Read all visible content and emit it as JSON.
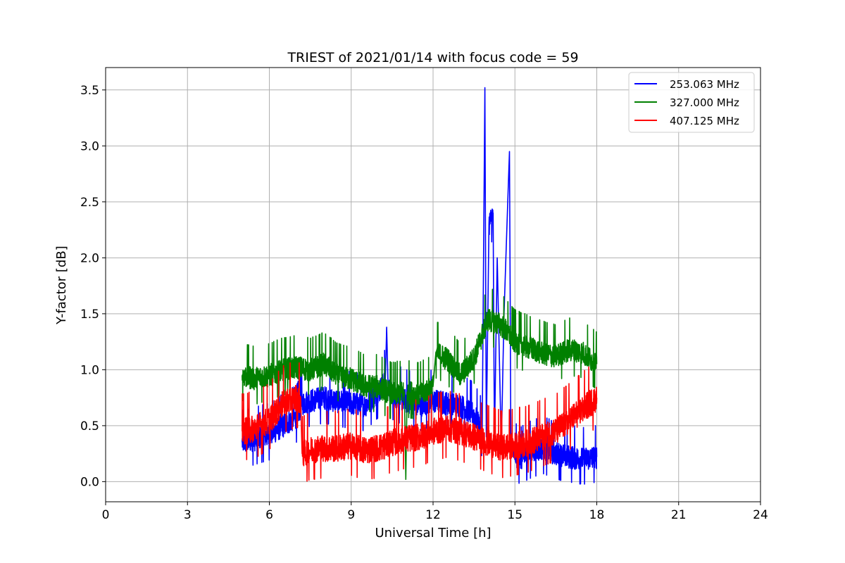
{
  "chart_data": {
    "type": "line",
    "title": "TRIEST of 2021/01/14 with focus code = 59",
    "xlabel": "Universal Time [h]",
    "ylabel": "Y-factor [dB]",
    "xlim": [
      0,
      24
    ],
    "ylim": [
      -0.18,
      3.7
    ],
    "xticks": [
      0,
      3,
      6,
      9,
      12,
      15,
      18,
      21,
      24
    ],
    "xtick_labels": [
      "0",
      "3",
      "6",
      "9",
      "12",
      "15",
      "18",
      "21",
      "24"
    ],
    "yticks": [
      0.0,
      0.5,
      1.0,
      1.5,
      2.0,
      2.5,
      3.0,
      3.5
    ],
    "ytick_labels": [
      "0.0",
      "0.5",
      "1.0",
      "1.5",
      "2.0",
      "2.5",
      "3.0",
      "3.5"
    ],
    "grid": true,
    "legend_position": "top-right",
    "series": [
      {
        "name": "253.063 MHz",
        "color": "#0000ff",
        "noise": 0.06,
        "x": [
          5.0,
          5.5,
          6.0,
          6.5,
          7.0,
          7.2,
          7.5,
          8.0,
          8.5,
          9.0,
          9.5,
          10.0,
          10.25,
          10.3,
          10.35,
          10.5,
          11.0,
          11.5,
          12.0,
          12.5,
          13.0,
          13.5,
          13.8,
          13.9,
          13.95,
          14.05,
          14.2,
          14.25,
          14.35,
          14.5,
          14.6,
          14.8,
          14.85,
          14.95,
          15.2,
          15.5,
          16.0,
          16.5,
          17.0,
          17.5,
          18.0
        ],
        "y": [
          0.35,
          0.38,
          0.42,
          0.5,
          0.58,
          0.7,
          0.72,
          0.75,
          0.72,
          0.7,
          0.68,
          0.8,
          0.9,
          1.38,
          0.85,
          0.78,
          0.72,
          0.68,
          0.72,
          0.7,
          0.68,
          0.6,
          0.45,
          3.52,
          0.4,
          2.3,
          2.4,
          0.35,
          2.0,
          0.3,
          1.5,
          2.95,
          0.4,
          0.25,
          0.2,
          0.25,
          0.3,
          0.25,
          0.22,
          0.2,
          0.22
        ]
      },
      {
        "name": "327.000 MHz",
        "color": "#008000",
        "noise": 0.06,
        "x": [
          5.0,
          5.5,
          6.0,
          6.5,
          7.0,
          7.5,
          8.0,
          8.5,
          9.0,
          9.5,
          10.0,
          10.5,
          10.95,
          11.0,
          11.05,
          11.5,
          12.0,
          12.1,
          12.5,
          13.0,
          13.5,
          14.0,
          14.5,
          15.0,
          15.5,
          16.0,
          16.5,
          17.0,
          17.5,
          18.0
        ],
        "y": [
          0.95,
          0.92,
          0.95,
          1.0,
          1.02,
          1.0,
          1.05,
          0.95,
          0.92,
          0.85,
          0.85,
          0.78,
          0.8,
          0.02,
          0.8,
          0.78,
          0.85,
          1.15,
          1.1,
          0.95,
          1.1,
          1.45,
          1.4,
          1.25,
          1.2,
          1.15,
          1.12,
          1.18,
          1.15,
          1.05
        ]
      },
      {
        "name": "407.125 MHz",
        "color": "#ff0000",
        "noise": 0.07,
        "x": [
          5.0,
          5.5,
          6.0,
          6.5,
          7.0,
          7.15,
          7.2,
          7.5,
          8.0,
          8.5,
          9.0,
          9.5,
          10.0,
          10.5,
          11.0,
          11.5,
          12.0,
          12.5,
          13.0,
          13.5,
          14.0,
          14.5,
          15.0,
          15.5,
          16.0,
          16.5,
          17.0,
          17.5,
          18.0
        ],
        "y": [
          0.45,
          0.48,
          0.55,
          0.7,
          0.75,
          0.72,
          0.25,
          0.28,
          0.3,
          0.3,
          0.32,
          0.28,
          0.3,
          0.35,
          0.38,
          0.4,
          0.45,
          0.48,
          0.45,
          0.4,
          0.35,
          0.3,
          0.32,
          0.35,
          0.4,
          0.45,
          0.55,
          0.65,
          0.75
        ]
      }
    ]
  }
}
